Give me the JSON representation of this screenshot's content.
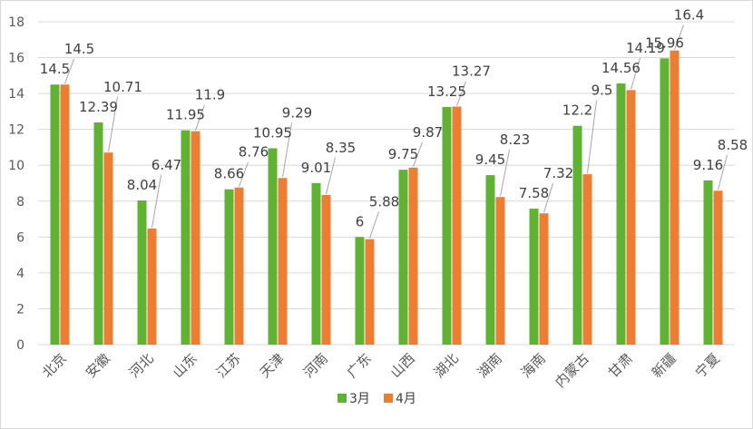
{
  "chart_data": {
    "type": "bar",
    "categories": [
      "北京",
      "安徽",
      "河北",
      "山东",
      "江苏",
      "天津",
      "河南",
      "广东",
      "山西",
      "湖北",
      "湖南",
      "海南",
      "内蒙古",
      "甘肃",
      "新疆",
      "宁夏"
    ],
    "series": [
      {
        "name": "3月",
        "color": "#5fb234",
        "values": [
          14.5,
          12.39,
          8.04,
          11.95,
          8.66,
          10.95,
          9.01,
          6,
          9.75,
          13.25,
          9.45,
          7.58,
          12.2,
          14.56,
          15.96,
          9.16
        ]
      },
      {
        "name": "4月",
        "color": "#ed7d31",
        "values": [
          14.5,
          10.71,
          6.47,
          11.9,
          8.76,
          9.29,
          8.35,
          5.88,
          9.87,
          13.27,
          8.23,
          7.32,
          9.5,
          14.19,
          16.4,
          8.58
        ]
      }
    ],
    "data_labels": [
      [
        "14.5",
        "12.39",
        "8.04",
        "11.95",
        "8.66",
        "10.95",
        "9.01",
        "6",
        "9.75",
        "13.25",
        "9.45",
        "7.58",
        "12.2",
        "14.56",
        "15.96",
        "9.16"
      ],
      [
        "14.5",
        "10.71",
        "6.47",
        "11.9",
        "8.76",
        "9.29",
        "8.35",
        "5.88",
        "9.87",
        "13.27",
        "8.23",
        "7.32",
        "9.5",
        "14.19",
        "16.4",
        "8.58"
      ]
    ],
    "yticks": [
      "0",
      "2",
      "4",
      "6",
      "8",
      "10",
      "12",
      "14",
      "16",
      "18"
    ],
    "ylim": [
      0,
      18
    ],
    "grid": true,
    "legend": "bottom-center",
    "title": "",
    "xlabel": "",
    "ylabel": ""
  }
}
